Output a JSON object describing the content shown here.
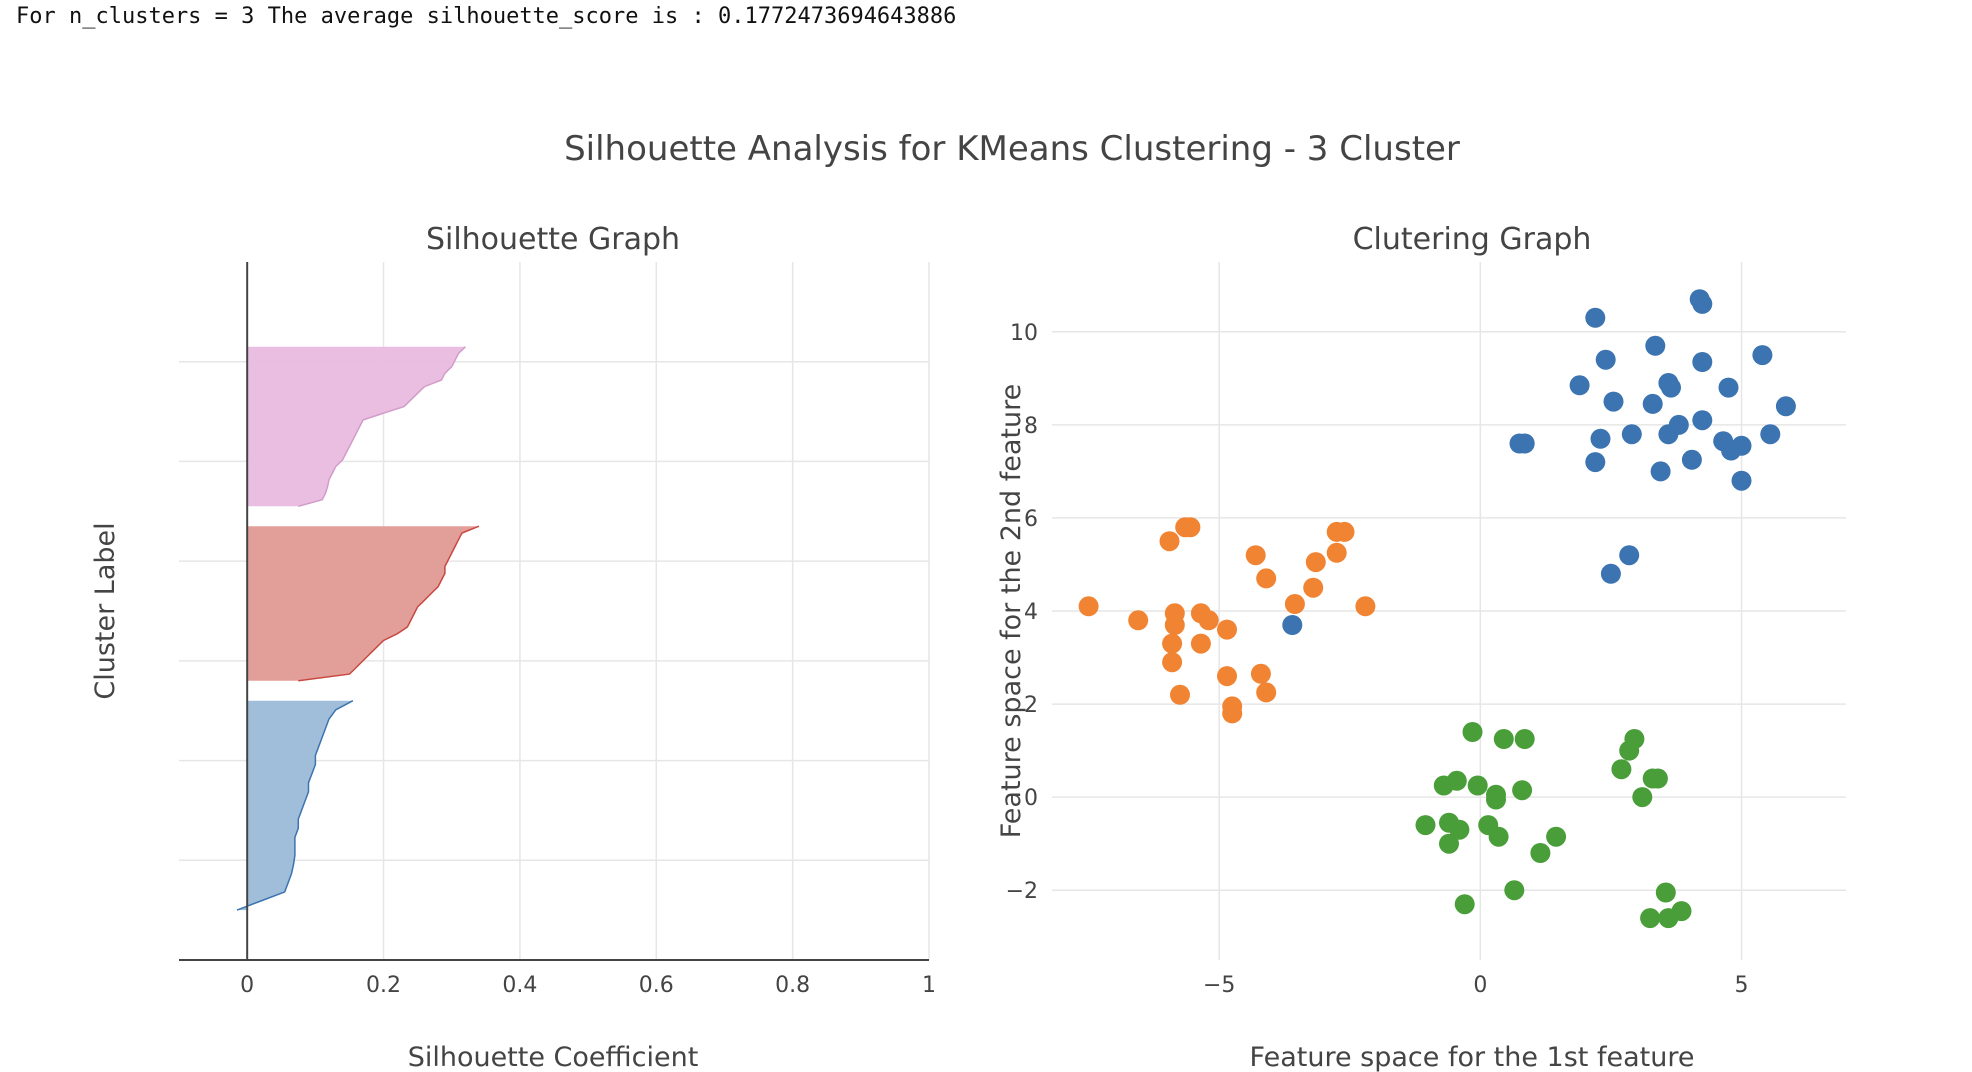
{
  "console": {
    "text": "For n_clusters = 3 The average silhouette_score is : 0.1772473694643886"
  },
  "figure": {
    "title": "Silhouette Analysis for KMeans Clustering - 3 Cluster"
  },
  "colors": {
    "cluster0": "#3b74b0",
    "cluster1": "#f18432",
    "cluster2": "#4a9e3a",
    "sil0_fill": "#9bbbd8",
    "sil0_line": "#3b74b0",
    "sil1_fill": "#e09a93",
    "sil1_line": "#c74840",
    "sil2_fill": "#e8bbde",
    "sil2_line": "#d39bc9"
  },
  "chart_data": [
    {
      "type": "area",
      "title": "Silhouette Graph",
      "xlabel": "Silhouette Coefficient",
      "ylabel": "Cluster Label",
      "xlim": [
        -0.1,
        1
      ],
      "xticks": [
        0,
        0.2,
        0.4,
        0.6,
        0.8,
        1
      ],
      "xtick_labels": [
        "0",
        "0.2",
        "0.4",
        "0.6",
        "0.8",
        "1"
      ],
      "ylim": [
        0,
        140
      ],
      "grid": true,
      "series": [
        {
          "cluster": 0,
          "y_range": [
            10,
            52
          ],
          "values": [
            0.155,
            0.13,
            0.12,
            0.115,
            0.11,
            0.105,
            0.1,
            0.1,
            0.095,
            0.09,
            0.09,
            0.085,
            0.08,
            0.075,
            0.075,
            0.07,
            0.07,
            0.07,
            0.068,
            0.065,
            0.06,
            0.055,
            0.02,
            -0.015
          ]
        },
        {
          "cluster": 1,
          "y_range": [
            56,
            87
          ],
          "values": [
            0.34,
            0.315,
            0.31,
            0.305,
            0.3,
            0.295,
            0.29,
            0.29,
            0.285,
            0.28,
            0.27,
            0.26,
            0.25,
            0.245,
            0.24,
            0.235,
            0.22,
            0.2,
            0.19,
            0.18,
            0.17,
            0.16,
            0.15,
            0.075
          ]
        },
        {
          "cluster": 2,
          "y_range": [
            91,
            123
          ],
          "values": [
            0.32,
            0.31,
            0.305,
            0.3,
            0.29,
            0.285,
            0.26,
            0.25,
            0.24,
            0.23,
            0.2,
            0.17,
            0.165,
            0.16,
            0.155,
            0.15,
            0.145,
            0.14,
            0.13,
            0.125,
            0.12,
            0.118,
            0.115,
            0.11,
            0.075
          ]
        }
      ]
    },
    {
      "type": "scatter",
      "title": "Clutering Graph",
      "xlabel": "Feature space for the 1st feature",
      "ylabel": "Feature space for the 2nd feature",
      "xlim": [
        -8.2,
        7
      ],
      "ylim": [
        -3.5,
        11.5
      ],
      "xticks": [
        -5,
        0,
        5
      ],
      "xtick_labels": [
        "−5",
        "0",
        "5"
      ],
      "yticks": [
        -2,
        0,
        2,
        4,
        6,
        8,
        10
      ],
      "ytick_labels": [
        "−2",
        "0",
        "2",
        "4",
        "6",
        "8",
        "10"
      ],
      "grid": true,
      "series": [
        {
          "cluster": 0,
          "points": [
            [
              2.2,
              10.3
            ],
            [
              4.2,
              10.7
            ],
            [
              4.25,
              10.6
            ],
            [
              3.35,
              9.7
            ],
            [
              5.4,
              9.5
            ],
            [
              2.4,
              9.4
            ],
            [
              4.25,
              9.35
            ],
            [
              1.9,
              8.85
            ],
            [
              3.6,
              8.9
            ],
            [
              2.55,
              8.5
            ],
            [
              3.65,
              8.8
            ],
            [
              4.75,
              8.8
            ],
            [
              3.3,
              8.45
            ],
            [
              5.85,
              8.4
            ],
            [
              2.3,
              7.7
            ],
            [
              2.9,
              7.8
            ],
            [
              3.6,
              7.8
            ],
            [
              3.8,
              8.0
            ],
            [
              4.25,
              8.1
            ],
            [
              0.75,
              7.6
            ],
            [
              0.85,
              7.6
            ],
            [
              4.65,
              7.65
            ],
            [
              4.8,
              7.45
            ],
            [
              5.0,
              7.55
            ],
            [
              5.55,
              7.8
            ],
            [
              2.2,
              7.2
            ],
            [
              3.45,
              7.0
            ],
            [
              4.05,
              7.25
            ],
            [
              5.0,
              6.8
            ],
            [
              2.85,
              5.2
            ],
            [
              2.5,
              4.8
            ],
            [
              -3.6,
              3.7
            ]
          ]
        },
        {
          "cluster": 1,
          "points": [
            [
              -5.55,
              5.8
            ],
            [
              -5.65,
              5.8
            ],
            [
              -5.95,
              5.5
            ],
            [
              -4.3,
              5.2
            ],
            [
              -2.75,
              5.7
            ],
            [
              -2.6,
              5.7
            ],
            [
              -2.75,
              5.25
            ],
            [
              -3.15,
              5.05
            ],
            [
              -4.1,
              4.7
            ],
            [
              -3.2,
              4.5
            ],
            [
              -3.55,
              4.15
            ],
            [
              -2.2,
              4.1
            ],
            [
              -7.5,
              4.1
            ],
            [
              -6.55,
              3.8
            ],
            [
              -5.85,
              3.95
            ],
            [
              -5.85,
              3.7
            ],
            [
              -5.35,
              3.95
            ],
            [
              -5.2,
              3.8
            ],
            [
              -4.85,
              3.6
            ],
            [
              -5.9,
              3.3
            ],
            [
              -5.35,
              3.3
            ],
            [
              -5.9,
              2.9
            ],
            [
              -4.85,
              2.6
            ],
            [
              -4.2,
              2.65
            ],
            [
              -5.75,
              2.2
            ],
            [
              -4.1,
              2.25
            ],
            [
              -4.75,
              1.95
            ],
            [
              -4.75,
              1.8
            ]
          ]
        },
        {
          "cluster": 2,
          "points": [
            [
              -0.15,
              1.4
            ],
            [
              0.45,
              1.25
            ],
            [
              0.85,
              1.25
            ],
            [
              2.95,
              1.25
            ],
            [
              2.85,
              1.0
            ],
            [
              2.7,
              0.6
            ],
            [
              3.3,
              0.4
            ],
            [
              3.4,
              0.4
            ],
            [
              -0.7,
              0.25
            ],
            [
              -0.45,
              0.35
            ],
            [
              -0.05,
              0.25
            ],
            [
              0.3,
              0.05
            ],
            [
              0.3,
              -0.05
            ],
            [
              0.8,
              0.15
            ],
            [
              3.1,
              0.0
            ],
            [
              -1.05,
              -0.6
            ],
            [
              -0.6,
              -0.55
            ],
            [
              -0.4,
              -0.7
            ],
            [
              0.15,
              -0.6
            ],
            [
              0.35,
              -0.85
            ],
            [
              -0.6,
              -1.0
            ],
            [
              1.45,
              -0.85
            ],
            [
              1.15,
              -1.2
            ],
            [
              0.65,
              -2.0
            ],
            [
              3.55,
              -2.05
            ],
            [
              -0.3,
              -2.3
            ],
            [
              3.25,
              -2.6
            ],
            [
              3.6,
              -2.6
            ],
            [
              3.85,
              -2.45
            ]
          ]
        }
      ]
    }
  ]
}
